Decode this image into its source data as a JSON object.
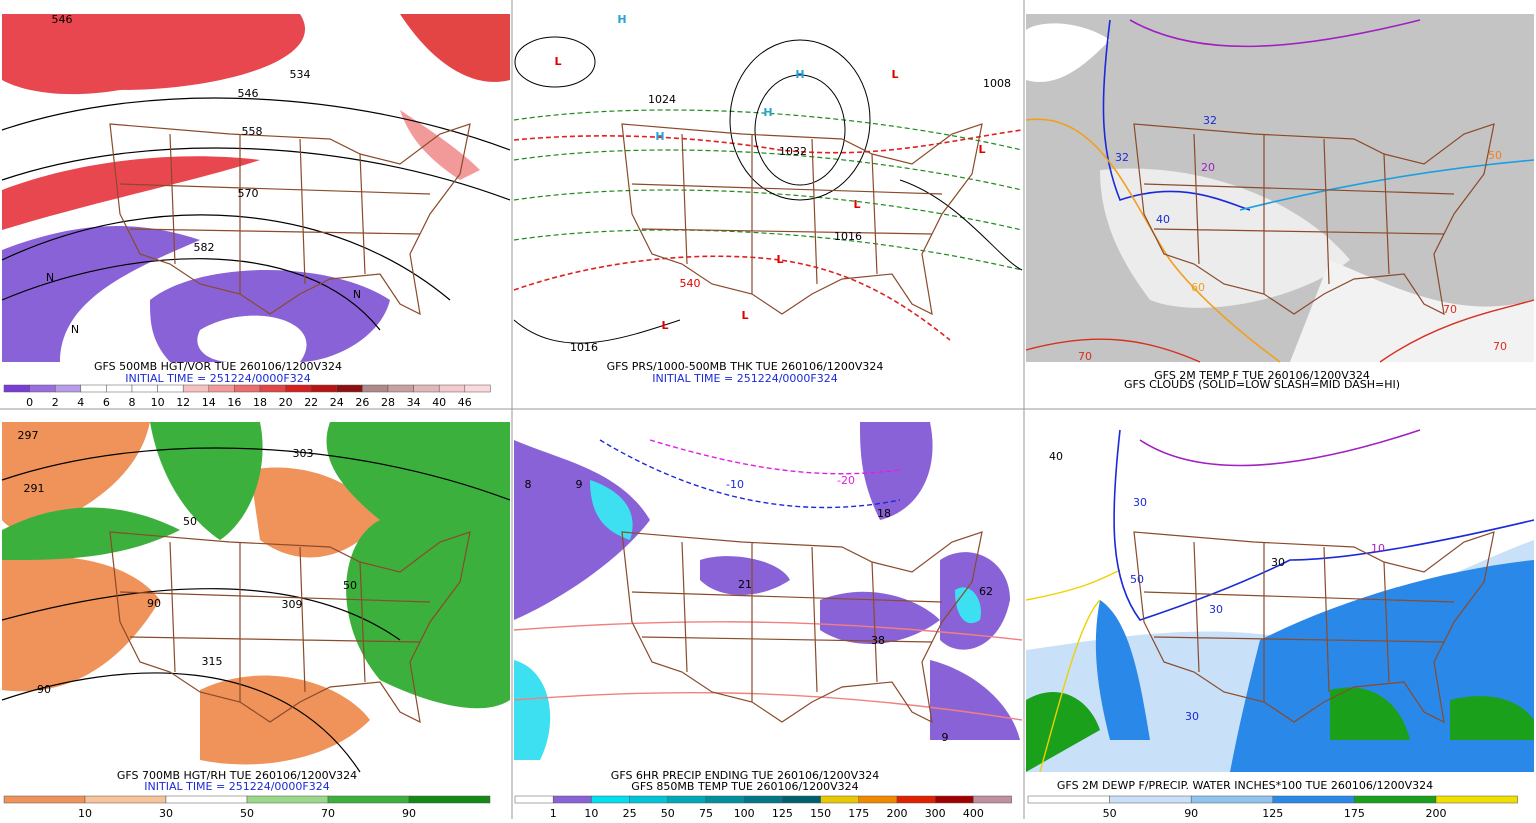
{
  "panels": [
    {
      "caption": [
        "GFS 500MB HGT/VOR TUE 260106/1200V324",
        "INITIAL TIME = 251224/0000F324"
      ],
      "map_labels": [
        "546",
        "534",
        "546",
        "558",
        "570",
        "582",
        "N",
        "N",
        "N"
      ],
      "colorbar": {
        "colors": [
          "#7a3cd6",
          "#9a6ee0",
          "#b89cea",
          "#ffffff",
          "#ffffff",
          "#ffffff",
          "#ffffff",
          "#f7c1c1",
          "#f29a9a",
          "#eb6d6d",
          "#e34545",
          "#d52020",
          "#b81414",
          "#8c1010",
          "#b08a8a",
          "#c8a0a0",
          "#e0b8b8",
          "#f4c8cc",
          "#fbd8dc"
        ],
        "ticks": [
          "0",
          "2",
          "4",
          "6",
          "8",
          "10",
          "12",
          "14",
          "16",
          "18",
          "20",
          "22",
          "24",
          "26",
          "28",
          "34",
          "40",
          "46"
        ]
      }
    },
    {
      "caption": [
        "GFS PRS/1000-500MB THK TUE 260106/1200V324",
        "INITIAL TIME = 251224/0000F324"
      ],
      "map_labels": [
        "L",
        "H",
        "H",
        "H",
        "H",
        "L",
        "L",
        "L",
        "L",
        "L",
        "L",
        "1024",
        "1032",
        "1016",
        "1008",
        "540",
        "1016"
      ]
    },
    {
      "caption": [
        "GFS 2M TEMP F TUE 260106/1200V324",
        "GFS CLOUDS (SOLID=LOW SLASH=MID DASH=HI)"
      ],
      "map_labels": [
        "32",
        "32",
        "20",
        "40",
        "50",
        "60",
        "70",
        "70",
        "70"
      ]
    },
    {
      "caption": [
        "GFS 700MB HGT/RH TUE 260106/1200V324",
        "INITIAL TIME = 251224/0000F324"
      ],
      "map_labels": [
        "297",
        "291",
        "303",
        "309",
        "315",
        "50",
        "90",
        "50",
        "90"
      ],
      "colorbar": {
        "colors": [
          "#f0935a",
          "#f7c39a",
          "#ffffff",
          "#9ad88a",
          "#3cb03c",
          "#138a13"
        ],
        "ticks": [
          "10",
          "30",
          "50",
          "70",
          "90"
        ]
      }
    },
    {
      "caption": [
        "GFS 6HR PRECIP ENDING TUE 260106/1200V324",
        "GFS 850MB TEMP TUE 260106/1200V324"
      ],
      "map_labels": [
        "8",
        "9",
        "-10",
        "-20",
        "18",
        "21",
        "38",
        "62",
        "9"
      ],
      "colorbar": {
        "colors": [
          "#ffffff",
          "#8a62d8",
          "#00e0f0",
          "#00c4d8",
          "#00a8b8",
          "#0090a0",
          "#007888",
          "#006070",
          "#e8c800",
          "#f08800",
          "#e02000",
          "#a00000",
          "#c090a0"
        ],
        "ticks": [
          "1",
          "10",
          "25",
          "50",
          "75",
          "100",
          "125",
          "150",
          "175",
          "200",
          "300",
          "400"
        ]
      }
    },
    {
      "caption": [
        "GFS 2M DEWP F/PRECIP. WATER INCHES*100 TUE 260106/1200V324"
      ],
      "map_labels": [
        "40",
        "30",
        "30",
        "10",
        "50",
        "30",
        "30"
      ],
      "colorbar": {
        "colors": [
          "#ffffff",
          "#c8e0f8",
          "#90c4f0",
          "#2a88e8",
          "#1aa01a",
          "#f0e000"
        ],
        "ticks": [
          "50",
          "90",
          "125",
          "175",
          "200"
        ]
      }
    }
  ]
}
